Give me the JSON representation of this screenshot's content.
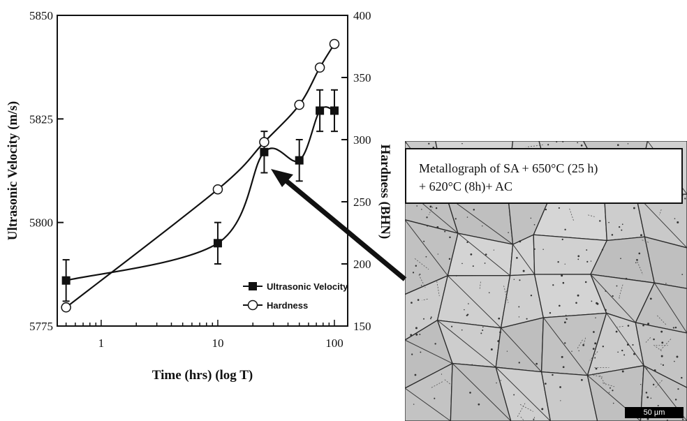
{
  "chart_data": {
    "type": "line",
    "x_scale": "log",
    "xlabel": "Time (hrs) (log T)",
    "x_ticks": [
      1,
      10,
      100
    ],
    "x_tick_labels": [
      "1",
      "10",
      "100"
    ],
    "y_left": {
      "label": "Ultrasonic Velocity (m/s)",
      "lim": [
        5775,
        5850
      ],
      "ticks": [
        5775,
        5800,
        5825,
        5850
      ]
    },
    "y_right": {
      "label": "Hardness (BHN)",
      "lim": [
        150,
        400
      ],
      "ticks": [
        150,
        200,
        250,
        300,
        350,
        400
      ]
    },
    "series": [
      {
        "name": "Ultrasonic Velocity",
        "axis": "left",
        "marker": "filled-square",
        "x": [
          0.5,
          10,
          25,
          50,
          75,
          100
        ],
        "y": [
          5786,
          5795,
          5817,
          5815,
          5827,
          5827
        ],
        "error": [
          5,
          5,
          5,
          5,
          5,
          5
        ]
      },
      {
        "name": "Hardness",
        "axis": "right",
        "marker": "open-circle",
        "x": [
          0.5,
          10,
          25,
          50,
          75,
          100
        ],
        "y": [
          165,
          260,
          298,
          328,
          358,
          377
        ]
      }
    ],
    "legend_position": "bottom-right",
    "grid": false
  },
  "micrograph": {
    "caption_line1": "Metallograph of SA + 650°C (25 h)",
    "caption_line2": "+ 620°C (8h)+ AC",
    "scale_bar": "50 µm"
  }
}
